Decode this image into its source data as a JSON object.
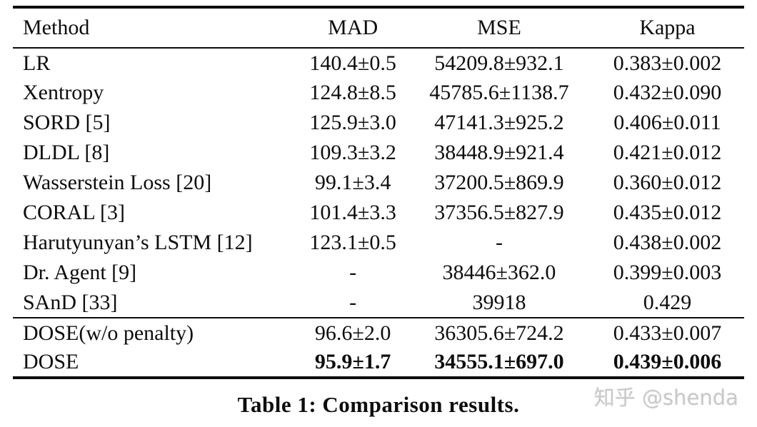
{
  "table": {
    "caption": "Table 1: Comparison results.",
    "columns": [
      "Method",
      "MAD",
      "MSE",
      "Kappa"
    ],
    "rows": [
      {
        "method": "LR",
        "values": [
          "140.4±0.5",
          "54209.8±932.1",
          "0.383±0.002"
        ],
        "group": "baselines",
        "bold": false
      },
      {
        "method": "Xentropy",
        "values": [
          "124.8±8.5",
          "45785.6±1138.7",
          "0.432±0.090"
        ],
        "group": "baselines",
        "bold": false
      },
      {
        "method": "SORD [5]",
        "values": [
          "125.9±3.0",
          "47141.3±925.2",
          "0.406±0.011"
        ],
        "group": "baselines",
        "bold": false
      },
      {
        "method": "DLDL [8]",
        "values": [
          "109.3±3.2",
          "38448.9±921.4",
          "0.421±0.012"
        ],
        "group": "baselines",
        "bold": false
      },
      {
        "method": "Wasserstein Loss [20]",
        "values": [
          "99.1±3.4",
          "37200.5±869.9",
          "0.360±0.012"
        ],
        "group": "baselines",
        "bold": false
      },
      {
        "method": "CORAL [3]",
        "values": [
          "101.4±3.3",
          "37356.5±827.9",
          "0.435±0.012"
        ],
        "group": "baselines",
        "bold": false
      },
      {
        "method": "Harutyunyan’s LSTM [12]",
        "values": [
          "123.1±0.5",
          "-",
          "0.438±0.002"
        ],
        "group": "baselines",
        "bold": false
      },
      {
        "method": "Dr. Agent [9]",
        "values": [
          "-",
          "38446±362.0",
          "0.399±0.003"
        ],
        "group": "baselines",
        "bold": false
      },
      {
        "method": "SAnD [33]",
        "values": [
          "-",
          "39918",
          "0.429"
        ],
        "group": "baselines",
        "bold": false
      },
      {
        "method": "DOSE(w/o penalty)",
        "values": [
          "96.6±2.0",
          "36305.6±724.2",
          "0.433±0.007"
        ],
        "group": "ours",
        "bold": false
      },
      {
        "method": "DOSE",
        "values": [
          "95.9±1.7",
          "34555.1±697.0",
          "0.439±0.006"
        ],
        "group": "ours",
        "bold": true
      }
    ]
  },
  "watermark": {
    "text": "知乎 @shenda",
    "color": "#c9c9c9"
  }
}
